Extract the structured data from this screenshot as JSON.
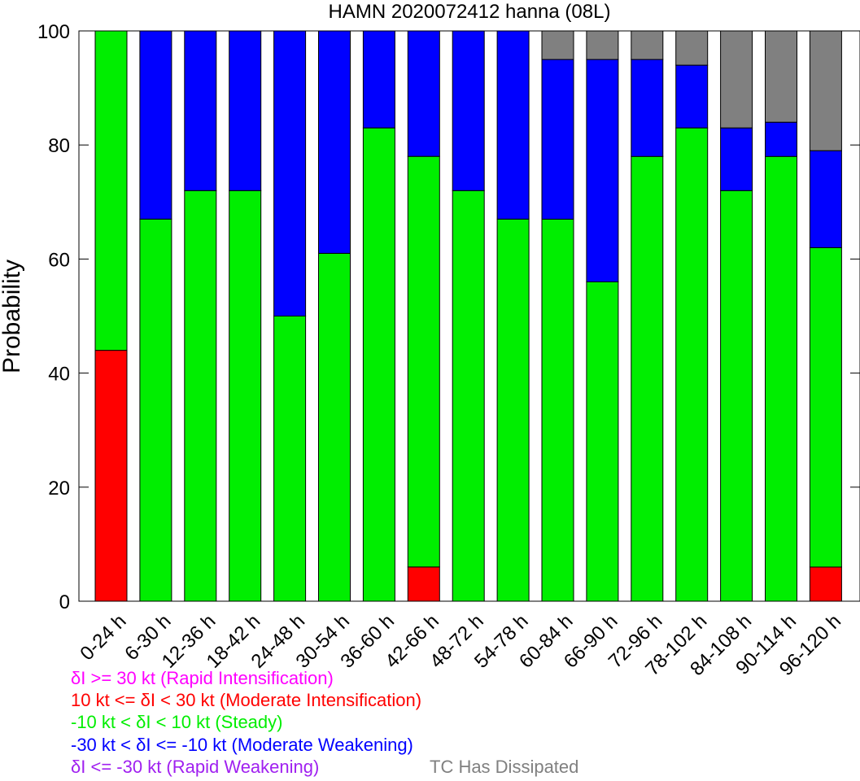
{
  "chart_data": {
    "type": "bar",
    "stacked": true,
    "title": "HAMN 2020072412 hanna (08L)",
    "ylabel": "Probability",
    "ylim": [
      0,
      100
    ],
    "yticks": [
      0,
      20,
      40,
      60,
      80,
      100
    ],
    "categories": [
      "0-24 h",
      "6-30 h",
      "12-36 h",
      "18-42 h",
      "24-48 h",
      "30-54 h",
      "36-60 h",
      "42-66 h",
      "48-72 h",
      "54-78 h",
      "60-84 h",
      "66-90 h",
      "72-96 h",
      "78-102 h",
      "84-108 h",
      "90-114 h",
      "96-120 h"
    ],
    "series": [
      {
        "name": "δI >= 30 kt (Rapid Intensification)",
        "color": "#ff00ff",
        "values": [
          0,
          0,
          0,
          0,
          0,
          0,
          0,
          0,
          0,
          0,
          0,
          0,
          0,
          0,
          0,
          0,
          0
        ]
      },
      {
        "name": "10 kt <= δI < 30 kt (Moderate Intensification)",
        "color": "#ff0000",
        "values": [
          44,
          0,
          0,
          0,
          0,
          0,
          0,
          6,
          0,
          0,
          0,
          0,
          0,
          0,
          0,
          0,
          6
        ]
      },
      {
        "name": "-10 kt < δI < 10 kt (Steady)",
        "color": "#00ee00",
        "values": [
          56,
          67,
          72,
          72,
          50,
          61,
          83,
          72,
          72,
          67,
          67,
          56,
          78,
          83,
          72,
          78,
          56
        ]
      },
      {
        "name": "-30 kt < δI <= -10 kt (Moderate Weakening)",
        "color": "#0000ff",
        "values": [
          0,
          33,
          28,
          28,
          50,
          39,
          17,
          22,
          28,
          33,
          28,
          39,
          17,
          11,
          11,
          6,
          17
        ]
      },
      {
        "name": "δI <= -30 kt (Rapid Weakening)",
        "color": "#a020f0",
        "values": [
          0,
          0,
          0,
          0,
          0,
          0,
          0,
          0,
          0,
          0,
          0,
          0,
          0,
          0,
          0,
          0,
          0
        ]
      },
      {
        "name": "TC Has Dissipated",
        "color": "#808080",
        "values": [
          0,
          0,
          0,
          0,
          0,
          0,
          0,
          0,
          0,
          0,
          5,
          5,
          5,
          6,
          17,
          16,
          21
        ]
      }
    ]
  }
}
